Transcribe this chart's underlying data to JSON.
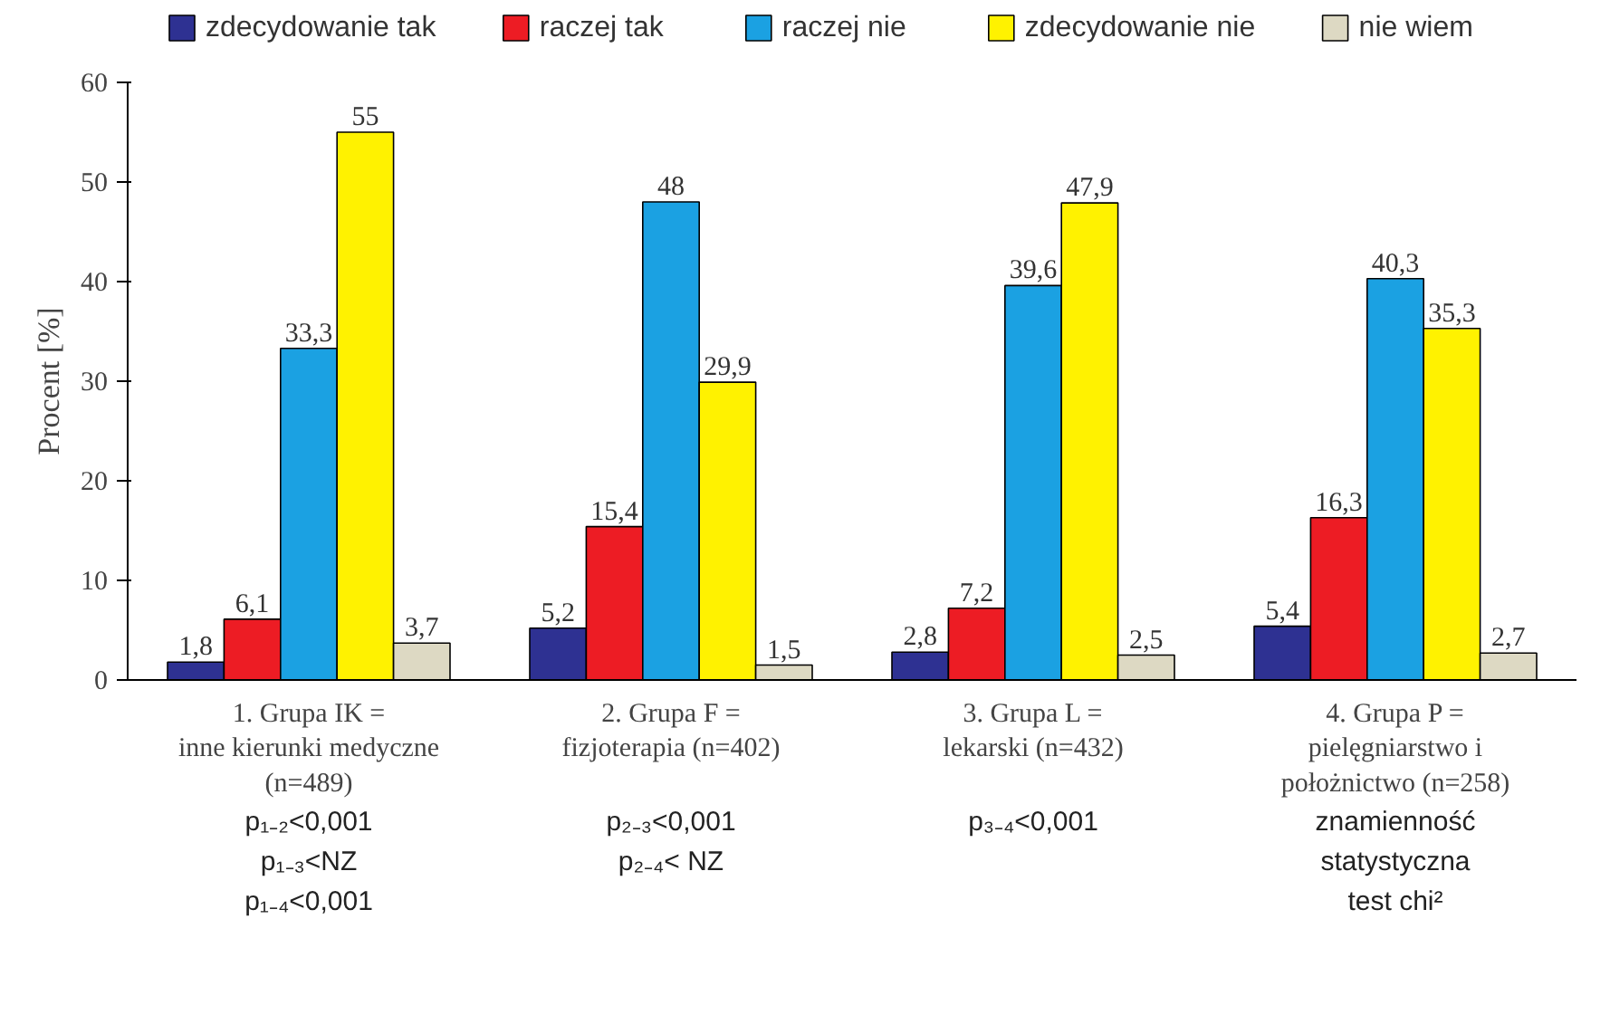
{
  "chart_data": {
    "type": "bar",
    "categories": [
      "1. Grupa IK =\ninne kierunki medyczne\n(n=489)",
      "2. Grupa F =\nfizjoterapia (n=402)",
      "3. Grupa L =\nlekarski (n=432)",
      "4. Grupa P =\npielęgniarstwo i\npołożnictwo (n=258)"
    ],
    "series": [
      {
        "name": "zdecydowanie tak",
        "color": "#2e3192",
        "values": [
          1.8,
          5.2,
          2.8,
          5.4
        ],
        "value_labels": [
          "1,8",
          "5,2",
          "2,8",
          "5,4"
        ]
      },
      {
        "name": "raczej tak",
        "color": "#ed1c24",
        "values": [
          6.1,
          15.4,
          7.2,
          16.3
        ],
        "value_labels": [
          "6,1",
          "15,4",
          "7,2",
          "16,3"
        ]
      },
      {
        "name": "raczej nie",
        "color": "#1ba1e2",
        "values": [
          33.3,
          48,
          39.6,
          40.3
        ],
        "value_labels": [
          "33,3",
          "48",
          "39,6",
          "40,3"
        ]
      },
      {
        "name": "zdecydowanie nie",
        "color": "#fff200",
        "values": [
          55,
          29.9,
          47.9,
          35.3
        ],
        "value_labels": [
          "55",
          "29,9",
          "47,9",
          "35,3"
        ]
      },
      {
        "name": "nie wiem",
        "color": "#ddd9c3",
        "values": [
          3.7,
          1.5,
          2.5,
          2.7
        ],
        "value_labels": [
          "3,7",
          "1,5",
          "2,5",
          "2,7"
        ]
      }
    ],
    "ylabel": "Procent [%]",
    "ylim": [
      0,
      60
    ],
    "yticks": [
      0,
      10,
      20,
      30,
      40,
      50,
      60
    ],
    "legend": "top",
    "annotations": [
      "p₁₋₂<0,001\np₁₋₃<NZ\np₁₋₄<0,001",
      "p₂₋₃<0,001\np₂₋₄< NZ",
      "p₃₋₄<0,001",
      "znamienność\nstatystyczna\ntest chi²"
    ]
  }
}
